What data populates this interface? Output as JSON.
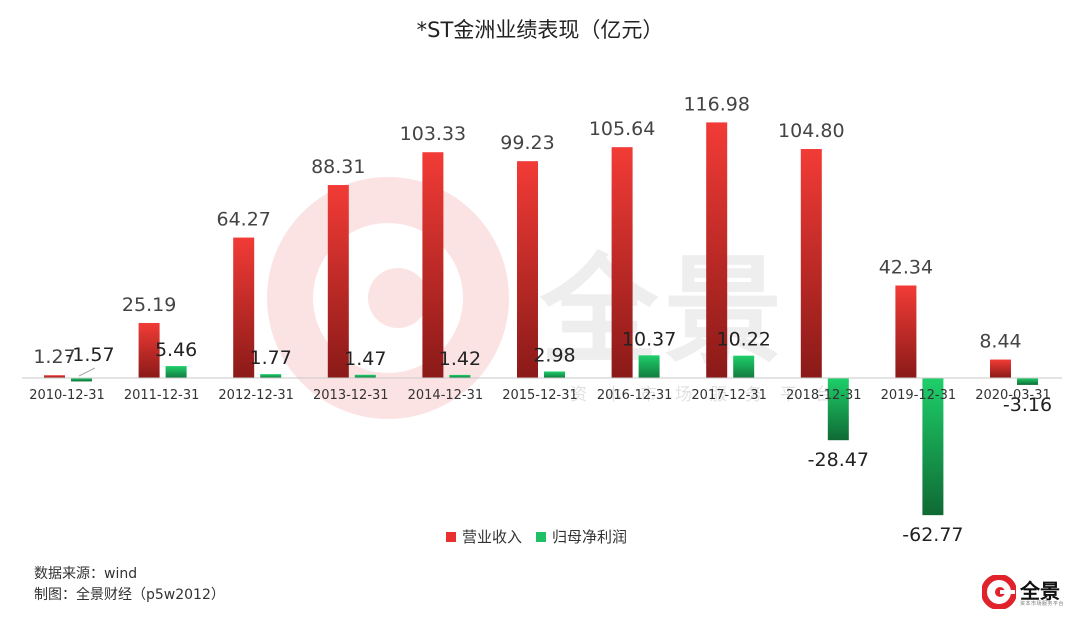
{
  "title": "*ST金洲业绩表现（亿元）",
  "legend": [
    {
      "label": "营业收入",
      "color": "#e8302e"
    },
    {
      "label": "归母净利润",
      "color": "#1fbf63"
    }
  ],
  "footer": {
    "source": "数据来源：wind",
    "maker": "制图：全景财经（p5w2012）"
  },
  "brand": {
    "name": "全景",
    "tagline": "资本市场服务平台"
  },
  "watermark": {
    "text": "全景",
    "subtitle": "资本市场服务平台"
  },
  "chart_data": {
    "type": "bar",
    "title": "*ST金洲业绩表现（亿元）",
    "categories": [
      "2010-12-31",
      "2011-12-31",
      "2012-12-31",
      "2013-12-31",
      "2014-12-31",
      "2015-12-31",
      "2016-12-31",
      "2017-12-31",
      "2018-12-31",
      "2019-12-31",
      "2020-03-31"
    ],
    "series": [
      {
        "name": "营业收入",
        "color": "#e8302e",
        "values": [
          1.27,
          25.19,
          64.27,
          88.31,
          103.33,
          99.23,
          105.64,
          116.98,
          104.8,
          42.34,
          8.44
        ],
        "labels": [
          "1.27",
          "25.19",
          "64.27",
          "88.31",
          "103.33",
          "99.23",
          "105.64",
          "116.98",
          "104.80",
          "42.34",
          "8.44"
        ]
      },
      {
        "name": "归母净利润",
        "color": "#1fbf63",
        "values": [
          -1.57,
          5.46,
          1.77,
          1.47,
          1.42,
          2.98,
          10.37,
          10.22,
          -28.47,
          -62.77,
          -3.16
        ],
        "labels": [
          "-1.57",
          "5.46",
          "1.77",
          "1.47",
          "1.42",
          "2.98",
          "10.37",
          "10.22",
          "-28.47",
          "-62.77",
          "-3.16"
        ]
      }
    ],
    "ylim": [
      -62.77,
      116.98
    ],
    "grid": false,
    "legend_position": "bottom"
  }
}
